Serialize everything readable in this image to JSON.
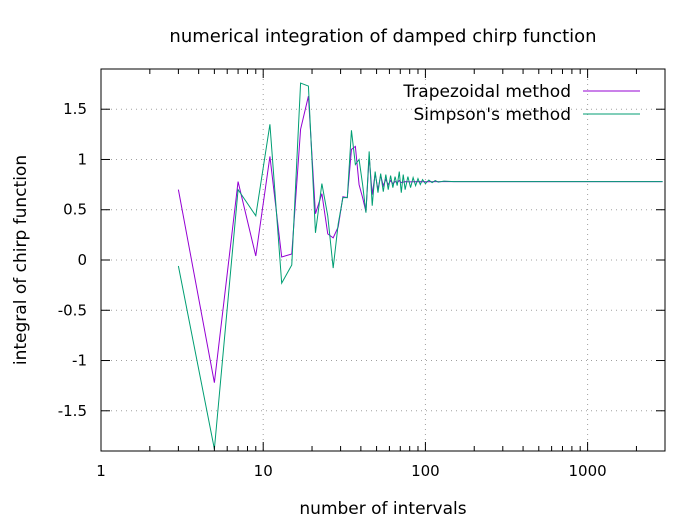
{
  "chart_data": {
    "type": "line",
    "title": "numerical integration of damped chirp function",
    "xlabel": "number of intervals",
    "ylabel": "integral of chirp function",
    "xscale": "log",
    "xlim": [
      1,
      3000
    ],
    "ylim": [
      -1.9,
      1.9
    ],
    "x_ticks": [
      {
        "value": 1,
        "label": "1"
      },
      {
        "value": 10,
        "label": "10"
      },
      {
        "value": 100,
        "label": "100"
      },
      {
        "value": 1000,
        "label": "1000"
      }
    ],
    "y_ticks": [
      {
        "value": 1.5,
        "label": "1.5"
      },
      {
        "value": 1,
        "label": "1"
      },
      {
        "value": 0.5,
        "label": "0.5"
      },
      {
        "value": 0,
        "label": "0"
      },
      {
        "value": -0.5,
        "label": "-0.5"
      },
      {
        "value": -1,
        "label": "-1"
      },
      {
        "value": -1.5,
        "label": "-1.5"
      }
    ],
    "grid": true,
    "legend_position": "top-right",
    "series": [
      {
        "name": "Trapezoidal method",
        "color": "#9400d3",
        "points": [
          [
            3,
            0.7
          ],
          [
            5,
            -1.22
          ],
          [
            7,
            0.78
          ],
          [
            9,
            0.04
          ],
          [
            11,
            1.03
          ],
          [
            13,
            0.03
          ],
          [
            15,
            0.06
          ],
          [
            17,
            1.3
          ],
          [
            19,
            1.63
          ],
          [
            21,
            0.46
          ],
          [
            23,
            0.66
          ],
          [
            25,
            0.26
          ],
          [
            27,
            0.22
          ],
          [
            29,
            0.33
          ],
          [
            31,
            0.63
          ],
          [
            33,
            0.62
          ],
          [
            35,
            1.1
          ],
          [
            37,
            1.13
          ],
          [
            39,
            0.75
          ],
          [
            41,
            0.62
          ],
          [
            43,
            0.48
          ],
          [
            45,
            1.03
          ],
          [
            47,
            0.65
          ],
          [
            49,
            0.86
          ],
          [
            51,
            0.7
          ],
          [
            53,
            0.84
          ],
          [
            55,
            0.74
          ],
          [
            57,
            0.8
          ],
          [
            59,
            0.75
          ],
          [
            61,
            0.79
          ],
          [
            63,
            0.76
          ],
          [
            65,
            0.78
          ],
          [
            67,
            0.77
          ],
          [
            69,
            0.79
          ],
          [
            71,
            0.77
          ],
          [
            75,
            0.78
          ],
          [
            80,
            0.777
          ],
          [
            90,
            0.78
          ],
          [
            100,
            0.778
          ],
          [
            120,
            0.78
          ],
          [
            200,
            0.78
          ],
          [
            500,
            0.78
          ],
          [
            1000,
            0.78
          ],
          [
            2900,
            0.78
          ]
        ]
      },
      {
        "name": "Simpson's method",
        "color": "#009e73",
        "points": [
          [
            3,
            -0.06
          ],
          [
            5,
            -1.88
          ],
          [
            7,
            0.7
          ],
          [
            9,
            0.44
          ],
          [
            11,
            1.35
          ],
          [
            13,
            -0.23
          ],
          [
            15,
            -0.05
          ],
          [
            17,
            1.76
          ],
          [
            19,
            1.73
          ],
          [
            21,
            0.27
          ],
          [
            23,
            0.76
          ],
          [
            25,
            0.44
          ],
          [
            27,
            -0.08
          ],
          [
            29,
            0.36
          ],
          [
            31,
            0.62
          ],
          [
            33,
            0.62
          ],
          [
            35,
            1.29
          ],
          [
            37,
            0.95
          ],
          [
            39,
            1.0
          ],
          [
            41,
            0.75
          ],
          [
            43,
            0.47
          ],
          [
            45,
            1.08
          ],
          [
            47,
            0.54
          ],
          [
            49,
            0.88
          ],
          [
            51,
            0.67
          ],
          [
            53,
            0.86
          ],
          [
            55,
            0.68
          ],
          [
            57,
            0.85
          ],
          [
            59,
            0.7
          ],
          [
            61,
            0.84
          ],
          [
            63,
            0.72
          ],
          [
            65,
            0.83
          ],
          [
            67,
            0.74
          ],
          [
            69,
            0.88
          ],
          [
            71,
            0.67
          ],
          [
            73,
            0.85
          ],
          [
            75,
            0.7
          ],
          [
            78,
            0.83
          ],
          [
            81,
            0.72
          ],
          [
            84,
            0.82
          ],
          [
            87,
            0.74
          ],
          [
            90,
            0.81
          ],
          [
            93,
            0.75
          ],
          [
            96,
            0.8
          ],
          [
            100,
            0.76
          ],
          [
            105,
            0.795
          ],
          [
            110,
            0.77
          ],
          [
            115,
            0.79
          ],
          [
            120,
            0.775
          ],
          [
            130,
            0.785
          ],
          [
            150,
            0.78
          ],
          [
            200,
            0.78
          ],
          [
            500,
            0.78
          ],
          [
            1000,
            0.78
          ],
          [
            2900,
            0.78
          ]
        ]
      }
    ]
  }
}
